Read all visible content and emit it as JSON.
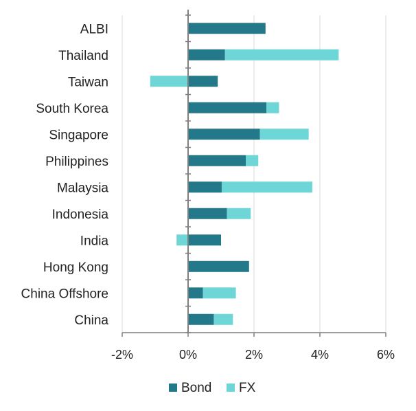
{
  "chart_data": {
    "type": "bar",
    "orientation": "horizontal",
    "stacked": true,
    "categories": [
      "ALBI",
      "Thailand",
      "Taiwan",
      "South Korea",
      "Singapore",
      "Philippines",
      "Malaysia",
      "Indonesia",
      "India",
      "Hong Kong",
      "China Offshore",
      "China"
    ],
    "series": [
      {
        "name": "Bond",
        "color": "#23798a",
        "values": [
          2.35,
          1.12,
          0.9,
          2.38,
          2.18,
          1.75,
          1.02,
          1.18,
          1.0,
          1.85,
          0.45,
          0.78
        ]
      },
      {
        "name": "FX",
        "color": "#6fd6d8",
        "values": [
          0.0,
          3.45,
          -1.15,
          0.38,
          1.48,
          0.38,
          2.75,
          0.72,
          -0.35,
          0.0,
          1.0,
          0.58
        ]
      }
    ],
    "xlim": [
      -2,
      6
    ],
    "xticks": [
      -2,
      0,
      2,
      4,
      6
    ],
    "xtick_labels": [
      "-2%",
      "0%",
      "2%",
      "4%",
      "6%"
    ],
    "grid": "vertical",
    "legend_position": "bottom"
  }
}
